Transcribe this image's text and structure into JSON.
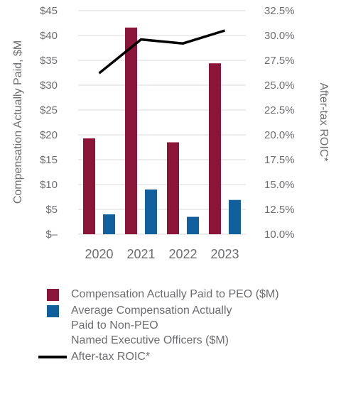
{
  "chart_data": {
    "type": "bar",
    "categories": [
      "2020",
      "2021",
      "2022",
      "2023"
    ],
    "series": [
      {
        "name": "Compensation Actually Paid to PEO ($M)",
        "type": "bar",
        "axis": "left",
        "color": "#8b1538",
        "values": [
          19.3,
          41.6,
          18.5,
          34.4
        ]
      },
      {
        "name": "Average Compensation Actually Paid to Non-PEO Named Executive Officers ($M)",
        "type": "bar",
        "axis": "left",
        "color": "#11609e",
        "values": [
          4.0,
          9.0,
          3.5,
          6.9
        ]
      },
      {
        "name": "After-tax ROIC*",
        "type": "line",
        "axis": "right",
        "color": "#000000",
        "values": [
          26.2,
          29.6,
          29.2,
          30.5
        ]
      }
    ],
    "ylabel": "Compensation Actually Paid, $M",
    "y2label": "After-tax ROIC*",
    "ylim": [
      0,
      45
    ],
    "y2lim": [
      10,
      32.5
    ],
    "y_ticks": [
      "$–",
      "$5",
      "$10",
      "$15",
      "$20",
      "$25",
      "$30",
      "$35",
      "$40",
      "$45"
    ],
    "y2_ticks": [
      "10.0%",
      "12.5%",
      "15.0%",
      "17.5%",
      "20.0%",
      "22.5%",
      "25.0%",
      "27.5%",
      "30.0%",
      "32.5%"
    ],
    "grid": true,
    "legend_position": "bottom"
  },
  "legend": {
    "items": [
      {
        "lines": [
          "Compensation Actually Paid to PEO ($M)"
        ]
      },
      {
        "lines": [
          "Average Compensation Actually",
          "Paid to Non-PEO",
          "Named Executive Officers ($M)"
        ]
      },
      {
        "lines": [
          "After-tax ROIC*"
        ]
      }
    ]
  }
}
